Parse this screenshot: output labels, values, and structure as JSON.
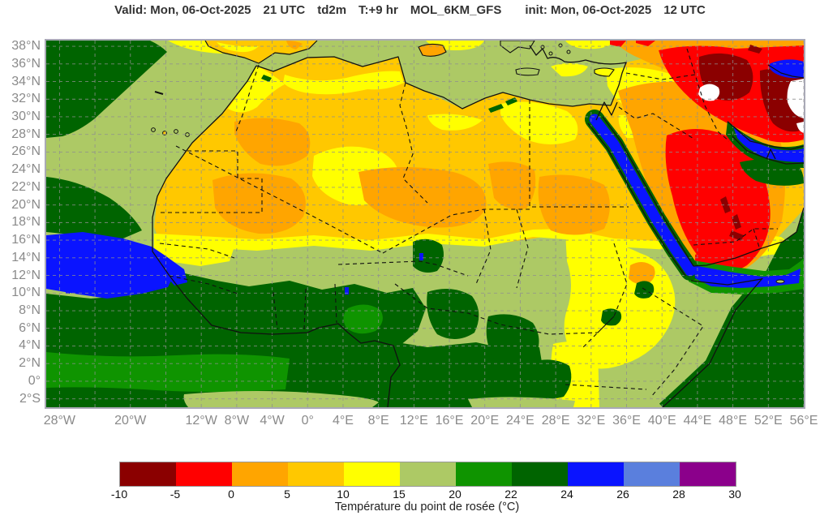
{
  "header": {
    "title_parts": [
      "Valid: Mon, 06-Oct-2025",
      "21 UTC",
      "td2m",
      "T:+9 hr",
      "MOL_6KM_GFS",
      "init: Mon, 06-Oct-2025",
      "12 UTC"
    ]
  },
  "map": {
    "x_ticks": [
      {
        "label": "28°W",
        "deg": -28
      },
      {
        "label": "20°W",
        "deg": -20
      },
      {
        "label": "12°W",
        "deg": -12
      },
      {
        "label": "8°W",
        "deg": -8
      },
      {
        "label": "4°W",
        "deg": -4
      },
      {
        "label": "0°",
        "deg": 0
      },
      {
        "label": "4°E",
        "deg": 4
      },
      {
        "label": "8°E",
        "deg": 8
      },
      {
        "label": "12°E",
        "deg": 12
      },
      {
        "label": "16°E",
        "deg": 16
      },
      {
        "label": "20°E",
        "deg": 20
      },
      {
        "label": "24°E",
        "deg": 24
      },
      {
        "label": "28°E",
        "deg": 28
      },
      {
        "label": "32°E",
        "deg": 32
      },
      {
        "label": "36°E",
        "deg": 36
      },
      {
        "label": "40°E",
        "deg": 40
      },
      {
        "label": "44°E",
        "deg": 44
      },
      {
        "label": "48°E",
        "deg": 48
      },
      {
        "label": "52°E",
        "deg": 52
      },
      {
        "label": "56°E",
        "deg": 56
      }
    ],
    "y_ticks": [
      {
        "label": "38°N",
        "deg": 38
      },
      {
        "label": "36°N",
        "deg": 36
      },
      {
        "label": "34°N",
        "deg": 34
      },
      {
        "label": "32°N",
        "deg": 32
      },
      {
        "label": "30°N",
        "deg": 30
      },
      {
        "label": "28°N",
        "deg": 28
      },
      {
        "label": "26°N",
        "deg": 26
      },
      {
        "label": "24°N",
        "deg": 24
      },
      {
        "label": "22°N",
        "deg": 22
      },
      {
        "label": "20°N",
        "deg": 20
      },
      {
        "label": "18°N",
        "deg": 18
      },
      {
        "label": "16°N",
        "deg": 16
      },
      {
        "label": "14°N",
        "deg": 14
      },
      {
        "label": "12°N",
        "deg": 12
      },
      {
        "label": "10°N",
        "deg": 10
      },
      {
        "label": "8°N",
        "deg": 8
      },
      {
        "label": "6°N",
        "deg": 6
      },
      {
        "label": "4°N",
        "deg": 4
      },
      {
        "label": "2°N",
        "deg": 2
      },
      {
        "label": "0°",
        "deg": 0
      },
      {
        "label": "2°S",
        "deg": -2
      }
    ]
  },
  "colorbar": {
    "caption": "Température du point de rosée (°C)",
    "tick_labels": [
      "-10",
      "-5",
      "0",
      "5",
      "10",
      "15",
      "20",
      "22",
      "24",
      "26",
      "28",
      "30"
    ],
    "segments": [
      {
        "from": -10,
        "to": -5,
        "color": "#8b0000",
        "name": "dark-red"
      },
      {
        "from": -5,
        "to": 0,
        "color": "#ff0000",
        "name": "red"
      },
      {
        "from": 0,
        "to": 5,
        "color": "#ffa500",
        "name": "orange"
      },
      {
        "from": 5,
        "to": 10,
        "color": "#ffc800",
        "name": "gold"
      },
      {
        "from": 10,
        "to": 15,
        "color": "#ffff00",
        "name": "yellow"
      },
      {
        "from": 15,
        "to": 20,
        "color": "#adc965",
        "name": "yellow-green"
      },
      {
        "from": 20,
        "to": 22,
        "color": "#0f9400",
        "name": "green"
      },
      {
        "from": 22,
        "to": 24,
        "color": "#006400",
        "name": "dark-green"
      },
      {
        "from": 24,
        "to": 26,
        "color": "#0a14ff",
        "name": "blue"
      },
      {
        "from": 26,
        "to": 28,
        "color": "#5a7fdd",
        "name": "cornflower-blue"
      },
      {
        "from": 28,
        "to": 30,
        "color": "#8b008b",
        "name": "purple"
      }
    ]
  }
}
